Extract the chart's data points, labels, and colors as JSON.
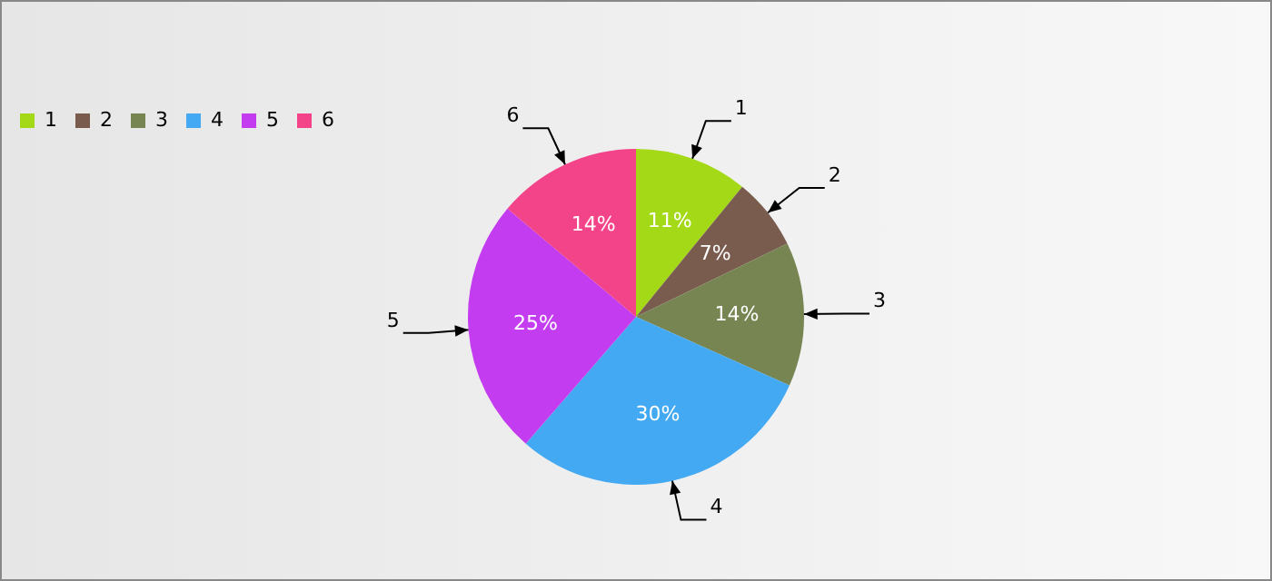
{
  "chart_data": {
    "type": "pie",
    "categories": [
      "1",
      "2",
      "3",
      "4",
      "5",
      "6"
    ],
    "values": [
      11,
      7,
      14,
      30,
      25,
      14
    ],
    "colors": [
      "#a3d916",
      "#7a5c4f",
      "#768552",
      "#42a9f2",
      "#c43cf0",
      "#f44489"
    ],
    "value_labels": [
      "11%",
      "7%",
      "14%",
      "30%",
      "25%",
      "14%"
    ],
    "legend": "top left"
  }
}
